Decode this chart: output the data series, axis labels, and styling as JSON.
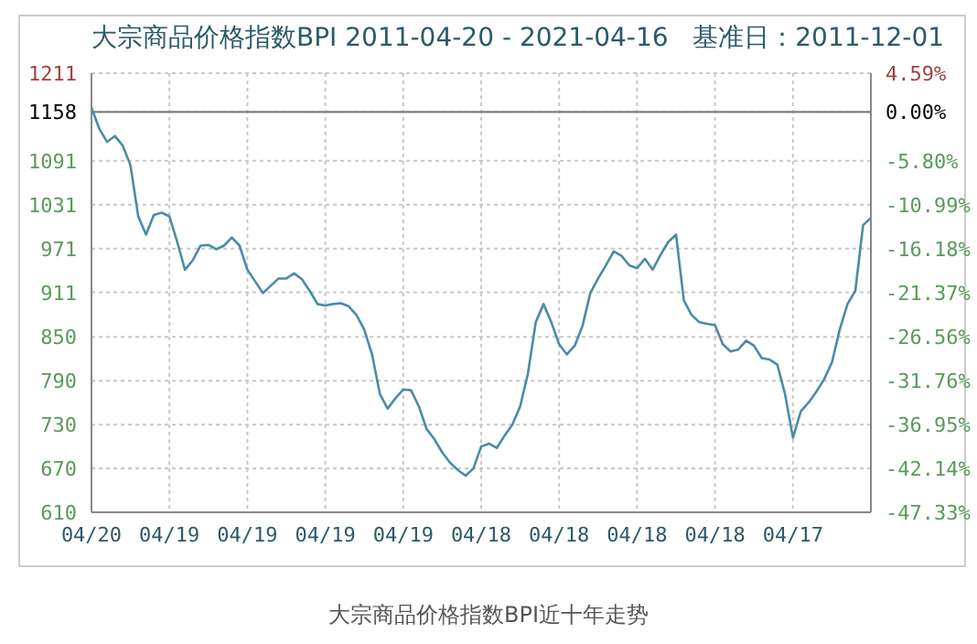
{
  "chart_data": {
    "type": "line",
    "title": "大宗商品价格指数BPI 2011-04-20 - 2021-04-16   基准日：2011-12-01",
    "annotations": [
      "大宗商品价格指数BPI近十年走势"
    ],
    "categories": [
      "04/20",
      null,
      null,
      null,
      null,
      null,
      null,
      null,
      null,
      null,
      "04/19",
      null,
      null,
      null,
      null,
      null,
      null,
      null,
      null,
      null,
      "04/19",
      null,
      null,
      null,
      null,
      null,
      null,
      null,
      null,
      null,
      "04/19",
      null,
      null,
      null,
      null,
      null,
      null,
      null,
      null,
      null,
      "04/19",
      null,
      null,
      null,
      null,
      null,
      null,
      null,
      null,
      null,
      "04/18",
      null,
      null,
      null,
      null,
      null,
      null,
      null,
      null,
      null,
      "04/18",
      null,
      null,
      null,
      null,
      null,
      null,
      null,
      null,
      null,
      "04/18",
      null,
      null,
      null,
      null,
      null,
      null,
      null,
      null,
      null,
      "04/18",
      null,
      null,
      null,
      null,
      null,
      null,
      null,
      null,
      null,
      "04/17",
      null,
      null,
      null,
      null,
      null,
      null,
      null,
      null,
      null,
      null
    ],
    "series": [
      {
        "color": "#4a8ca6",
        "values": [
          1164,
          1135,
          1117,
          1125,
          1112,
          1085,
          1015,
          990,
          1017,
          1020,
          1015,
          980,
          942,
          955,
          975,
          976,
          970,
          975,
          986,
          975,
          942,
          926,
          910,
          920,
          930,
          930,
          937,
          929,
          913,
          895,
          893,
          895,
          896,
          892,
          880,
          860,
          826,
          772,
          752,
          766,
          778,
          777,
          755,
          724,
          710,
          692,
          678,
          668,
          660,
          670,
          700,
          704,
          698,
          715,
          730,
          755,
          800,
          870,
          895,
          870,
          840,
          826,
          838,
          865,
          910,
          930,
          948,
          967,
          961,
          948,
          944,
          957,
          942,
          962,
          980,
          990,
          900,
          880,
          870,
          868,
          866,
          840,
          830,
          833,
          845,
          838,
          821,
          819,
          812,
          771,
          712,
          748,
          760,
          775,
          792,
          815,
          860,
          895,
          913,
          1003,
          1013
        ]
      }
    ],
    "ylim": [
      610,
      1211
    ],
    "yticks": [
      610,
      670,
      730,
      790,
      850,
      911,
      971,
      1031,
      1091,
      1158,
      1211
    ],
    "y2lim": [
      -47.33,
      4.59
    ],
    "y2ticks": [
      {
        "value": -47.33,
        "label": "-47.33%"
      },
      {
        "value": -42.14,
        "label": "-42.14%"
      },
      {
        "value": -36.95,
        "label": "-36.95%"
      },
      {
        "value": -31.76,
        "label": "-31.76%"
      },
      {
        "value": -26.56,
        "label": "-26.56%"
      },
      {
        "value": -21.37,
        "label": "-21.37%"
      },
      {
        "value": -16.18,
        "label": "-16.18%"
      },
      {
        "value": -10.99,
        "label": "-10.99%"
      },
      {
        "value": -5.8,
        "label": "-5.80%"
      },
      {
        "value": 0,
        "label": "0.00%"
      },
      {
        "value": 4.59,
        "label": "4.59%"
      }
    ],
    "ref_lines": [
      {
        "axis": "y",
        "value": 1158,
        "color": "#808080"
      }
    ],
    "grid": true,
    "marker": "none",
    "line_style": "solid"
  }
}
